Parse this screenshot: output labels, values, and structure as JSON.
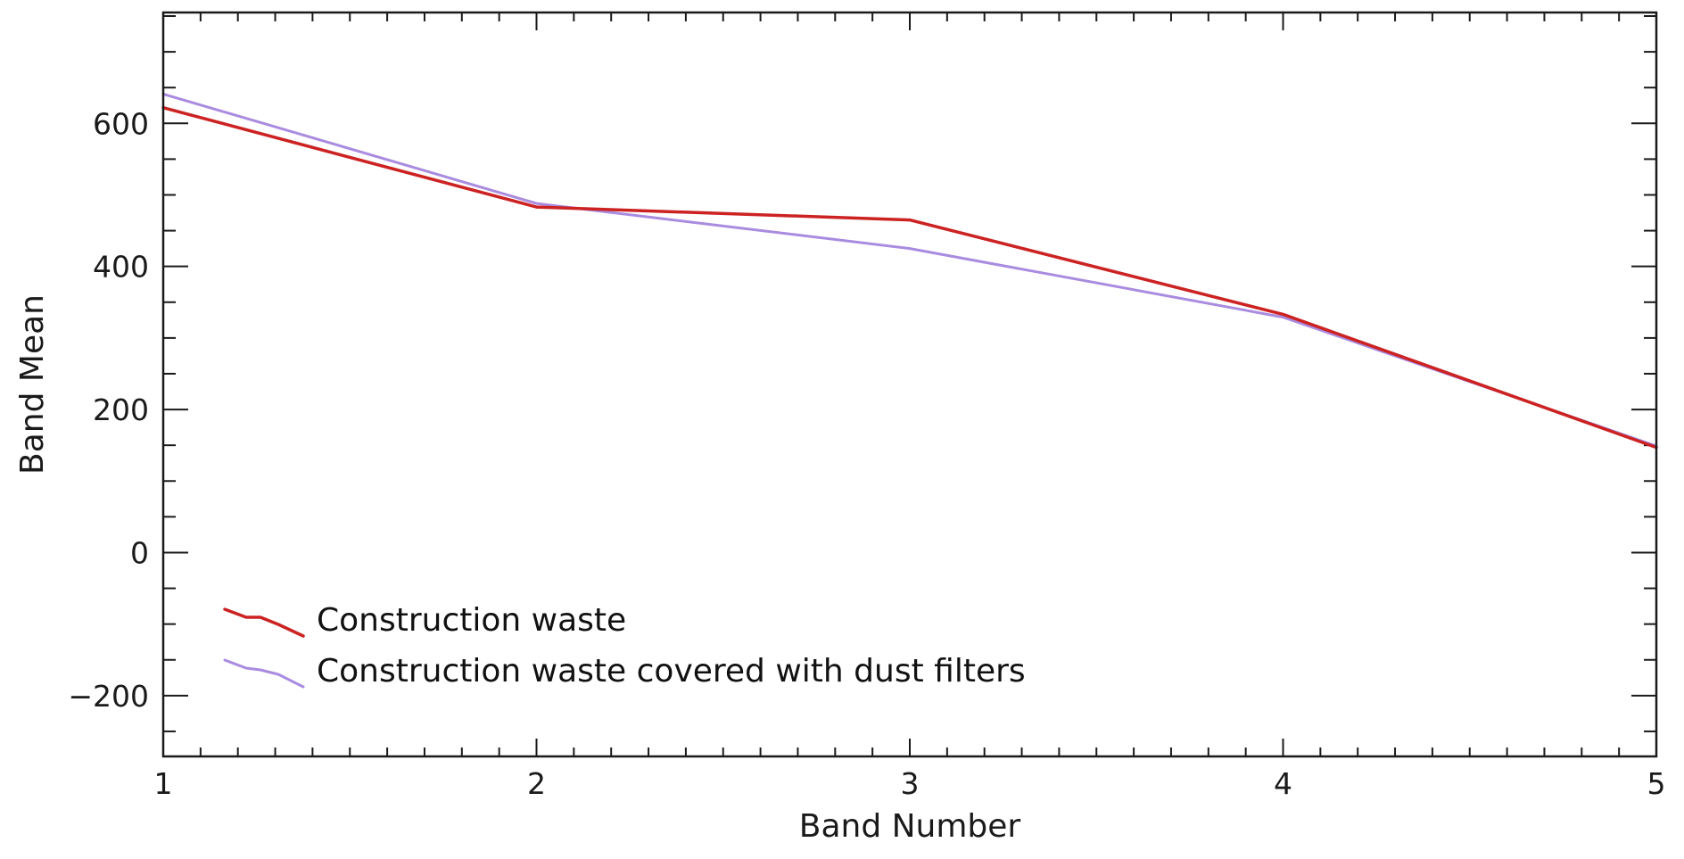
{
  "chart_data": {
    "type": "line",
    "xlabel": "Band Number",
    "ylabel": "Band Mean",
    "xlim": [
      1,
      5
    ],
    "ylim": [
      -285,
      755
    ],
    "x_ticks": [
      1,
      2,
      3,
      4,
      5
    ],
    "y_ticks": [
      -200,
      0,
      200,
      400,
      600
    ],
    "x_tick_labels": [
      "1",
      "2",
      "3",
      "4",
      "5"
    ],
    "y_tick_labels": [
      "−200",
      "0",
      "200",
      "400",
      "600"
    ],
    "x_minor_step": 0.1,
    "y_minor_step": 50,
    "grid": false,
    "legend_position": "bottom-left",
    "x": [
      1,
      2,
      3,
      4,
      5
    ],
    "series": [
      {
        "name": "Construction waste",
        "color": "#cc2222",
        "values": [
          622,
          483,
          465,
          333,
          147
        ]
      },
      {
        "name": "Construction waste covered with dust filters",
        "color": "#a98be0",
        "values": [
          641,
          488,
          425,
          329,
          149
        ]
      }
    ]
  }
}
